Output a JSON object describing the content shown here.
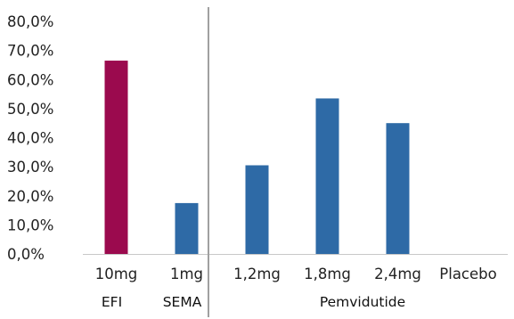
{
  "chart_data": {
    "type": "bar",
    "title": "",
    "xlabel": "",
    "ylabel": "",
    "ylim": [
      0,
      80
    ],
    "yticks": [
      "0,0%",
      "10,0%",
      "20,0%",
      "30,0%",
      "40,0%",
      "50,0%",
      "60,0%",
      "70,0%",
      "80,0%"
    ],
    "y_format": "percent with comma decimal separator",
    "grid": false,
    "categories": [
      "10mg",
      "1mg",
      "1,2mg",
      "1,8mg",
      "2,4mg",
      "Placebo"
    ],
    "values": [
      66.5,
      17.5,
      30.5,
      53.5,
      45.0,
      0.0
    ],
    "bar_colors": [
      "#9b0a4e",
      "#2e6aa6",
      "#2e6aa6",
      "#2e6aa6",
      "#2e6aa6",
      "#2e6aa6"
    ],
    "groups": [
      {
        "label": "EFI",
        "categories": [
          "10mg"
        ]
      },
      {
        "label": "SEMA",
        "categories": [
          "1mg"
        ]
      },
      {
        "label": "Pemvidutide",
        "categories": [
          "1,2mg",
          "1,8mg",
          "2,4mg",
          "Placebo"
        ]
      }
    ],
    "separator_after_category_index": 1
  },
  "colors": {
    "axis_line": "#c8c8c8",
    "separator": "#a0a0a0",
    "text": "#222222"
  }
}
